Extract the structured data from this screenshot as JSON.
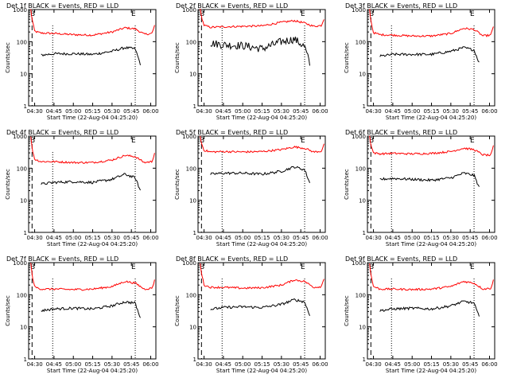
{
  "axis": {
    "ylabel": "Counts/sec",
    "xlabel": "Start Time (22-Aug-04 04:25:20)",
    "xticks": [
      "04:30",
      "04:45",
      "05:00",
      "05:15",
      "05:30",
      "05:45",
      "06:00"
    ],
    "yticks": [
      "1",
      "10",
      "100",
      "1000"
    ]
  },
  "colors": {
    "events": "#000000",
    "lld": "#ff0000",
    "axis": "#000000"
  },
  "chart_data": [
    {
      "type": "line",
      "title": "Det 1f BLACK = Events, RED = LLD",
      "xlim": [
        "04:25:20",
        "06:04:00"
      ],
      "ylim": [
        1,
        1000
      ],
      "yscale": "log",
      "xticks": [
        "04:30",
        "04:45",
        "05:00",
        "05:15",
        "05:30",
        "05:45",
        "06:00"
      ],
      "markers": [
        "B",
        "E"
      ],
      "series": [
        {
          "role": "LLD",
          "color": "#ff0000",
          "x": [
            "04:27",
            "04:28",
            "04:30",
            "04:35",
            "04:45",
            "05:00",
            "05:15",
            "05:30",
            "05:40",
            "05:48",
            "05:55",
            "06:01",
            "06:03"
          ],
          "y": [
            1000,
            500,
            210,
            185,
            180,
            165,
            160,
            200,
            270,
            250,
            170,
            180,
            320
          ]
        },
        {
          "role": "Events",
          "color": "#000000",
          "x": [
            "04:35",
            "04:45",
            "05:00",
            "05:15",
            "05:30",
            "05:40",
            "05:48",
            "05:52"
          ],
          "y": [
            38,
            42,
            42,
            40,
            50,
            65,
            60,
            20
          ]
        }
      ]
    },
    {
      "type": "line",
      "title": "Det 2f BLACK = Events, RED = LLD",
      "xlim": [
        "04:25:20",
        "06:04:00"
      ],
      "ylim": [
        1,
        1000
      ],
      "yscale": "log",
      "xticks": [
        "04:30",
        "04:45",
        "05:00",
        "05:15",
        "05:30",
        "05:45",
        "06:00"
      ],
      "markers": [
        "B",
        "E"
      ],
      "series": [
        {
          "role": "LLD",
          "color": "#ff0000",
          "x": [
            "04:27",
            "04:28",
            "04:30",
            "04:35",
            "04:45",
            "05:00",
            "05:15",
            "05:30",
            "05:40",
            "05:48",
            "05:55",
            "06:01",
            "06:03"
          ],
          "y": [
            1000,
            600,
            320,
            280,
            290,
            300,
            310,
            400,
            450,
            380,
            300,
            320,
            520
          ]
        },
        {
          "role": "Events",
          "color": "#000000",
          "x": [
            "04:35",
            "04:45",
            "05:00",
            "05:15",
            "05:30",
            "05:40",
            "05:48",
            "05:52"
          ],
          "y": [
            90,
            80,
            75,
            60,
            100,
            120,
            70,
            20
          ]
        }
      ]
    },
    {
      "type": "line",
      "title": "Det 3f BLACK = Events, RED = LLD",
      "xlim": [
        "04:25:20",
        "06:04:00"
      ],
      "ylim": [
        1,
        1000
      ],
      "yscale": "log",
      "xticks": [
        "04:30",
        "04:45",
        "05:00",
        "05:15",
        "05:30",
        "05:45",
        "06:00"
      ],
      "markers": [
        "B",
        "E"
      ],
      "series": [
        {
          "role": "LLD",
          "color": "#ff0000",
          "x": [
            "04:27",
            "04:28",
            "04:30",
            "04:35",
            "04:45",
            "05:00",
            "05:15",
            "05:30",
            "05:40",
            "05:48",
            "05:55",
            "06:01",
            "06:03"
          ],
          "y": [
            1000,
            450,
            190,
            165,
            160,
            150,
            150,
            180,
            260,
            240,
            150,
            160,
            300
          ]
        },
        {
          "role": "Events",
          "color": "#000000",
          "x": [
            "04:35",
            "04:45",
            "05:00",
            "05:15",
            "05:30",
            "05:40",
            "05:48",
            "05:52"
          ],
          "y": [
            35,
            40,
            40,
            40,
            50,
            65,
            55,
            22
          ]
        }
      ]
    },
    {
      "type": "line",
      "title": "Det 4f BLACK = Events, RED = LLD",
      "xlim": [
        "04:25:20",
        "06:04:00"
      ],
      "ylim": [
        1,
        1000
      ],
      "yscale": "log",
      "xticks": [
        "04:30",
        "04:45",
        "05:00",
        "05:15",
        "05:30",
        "05:45",
        "06:00"
      ],
      "markers": [
        "B",
        "E"
      ],
      "series": [
        {
          "role": "LLD",
          "color": "#ff0000",
          "x": [
            "04:27",
            "04:28",
            "04:30",
            "04:35",
            "04:45",
            "05:00",
            "05:15",
            "05:30",
            "05:40",
            "05:48",
            "05:55",
            "06:01",
            "06:03"
          ],
          "y": [
            1000,
            420,
            190,
            160,
            160,
            150,
            150,
            180,
            250,
            230,
            150,
            160,
            300
          ]
        },
        {
          "role": "Events",
          "color": "#000000",
          "x": [
            "04:35",
            "04:45",
            "05:00",
            "05:15",
            "05:30",
            "05:40",
            "05:48",
            "05:52"
          ],
          "y": [
            32,
            36,
            38,
            36,
            45,
            65,
            50,
            20
          ]
        }
      ]
    },
    {
      "type": "line",
      "title": "Det 5f BLACK = Events, RED = LLD",
      "xlim": [
        "04:25:20",
        "06:04:00"
      ],
      "ylim": [
        1,
        1000
      ],
      "yscale": "log",
      "xticks": [
        "04:30",
        "04:45",
        "05:00",
        "05:15",
        "05:30",
        "05:45",
        "06:00"
      ],
      "markers": [
        "B",
        "E"
      ],
      "series": [
        {
          "role": "LLD",
          "color": "#ff0000",
          "x": [
            "04:27",
            "04:28",
            "04:30",
            "04:35",
            "04:45",
            "05:00",
            "05:15",
            "05:30",
            "05:40",
            "05:48",
            "05:55",
            "06:01",
            "06:03"
          ],
          "y": [
            1000,
            600,
            360,
            320,
            330,
            320,
            330,
            380,
            460,
            420,
            320,
            340,
            540
          ]
        },
        {
          "role": "Events",
          "color": "#000000",
          "x": [
            "04:35",
            "04:45",
            "05:00",
            "05:15",
            "05:30",
            "05:40",
            "05:48",
            "05:52"
          ],
          "y": [
            65,
            70,
            70,
            65,
            80,
            110,
            90,
            35
          ]
        }
      ]
    },
    {
      "type": "line",
      "title": "Det 6f BLACK = Events, RED = LLD",
      "xlim": [
        "04:25:20",
        "06:04:00"
      ],
      "ylim": [
        1,
        1000
      ],
      "yscale": "log",
      "xticks": [
        "04:30",
        "04:45",
        "05:00",
        "05:15",
        "05:30",
        "05:45",
        "06:00"
      ],
      "markers": [
        "B",
        "E"
      ],
      "series": [
        {
          "role": "LLD",
          "color": "#ff0000",
          "x": [
            "04:27",
            "04:28",
            "04:30",
            "04:35",
            "04:45",
            "05:00",
            "05:15",
            "05:30",
            "05:40",
            "05:48",
            "05:55",
            "06:01",
            "06:03"
          ],
          "y": [
            1000,
            550,
            300,
            280,
            290,
            280,
            290,
            330,
            420,
            380,
            260,
            250,
            480
          ]
        },
        {
          "role": "Events",
          "color": "#000000",
          "x": [
            "04:35",
            "04:45",
            "05:00",
            "05:15",
            "05:30",
            "05:40",
            "05:48",
            "05:52"
          ],
          "y": [
            45,
            48,
            45,
            42,
            50,
            70,
            60,
            25
          ]
        }
      ]
    },
    {
      "type": "line",
      "title": "Det 7f BLACK = Events, RED = LLD",
      "xlim": [
        "04:25:20",
        "06:04:00"
      ],
      "ylim": [
        1,
        1000
      ],
      "yscale": "log",
      "xticks": [
        "04:30",
        "04:45",
        "05:00",
        "05:15",
        "05:30",
        "05:45",
        "06:00"
      ],
      "markers": [
        "B",
        "E"
      ],
      "series": [
        {
          "role": "LLD",
          "color": "#ff0000",
          "x": [
            "04:27",
            "04:28",
            "04:30",
            "04:35",
            "04:45",
            "05:00",
            "05:15",
            "05:30",
            "05:40",
            "05:48",
            "05:55",
            "06:01",
            "06:03"
          ],
          "y": [
            1000,
            420,
            175,
            150,
            150,
            145,
            150,
            180,
            260,
            230,
            150,
            160,
            280
          ]
        },
        {
          "role": "Events",
          "color": "#000000",
          "x": [
            "04:35",
            "04:45",
            "05:00",
            "05:15",
            "05:30",
            "05:40",
            "05:48",
            "05:52"
          ],
          "y": [
            32,
            36,
            38,
            36,
            45,
            60,
            55,
            18
          ]
        }
      ]
    },
    {
      "type": "line",
      "title": "Det 8f BLACK = Events, RED = LLD",
      "xlim": [
        "04:25:20",
        "06:04:00"
      ],
      "ylim": [
        1,
        1000
      ],
      "yscale": "log",
      "xticks": [
        "04:30",
        "04:45",
        "05:00",
        "05:15",
        "05:30",
        "05:45",
        "06:00"
      ],
      "markers": [
        "B",
        "E"
      ],
      "series": [
        {
          "role": "LLD",
          "color": "#ff0000",
          "x": [
            "04:27",
            "04:28",
            "04:30",
            "04:35",
            "04:45",
            "05:00",
            "05:15",
            "05:30",
            "05:40",
            "05:48",
            "05:55",
            "06:01",
            "06:03"
          ],
          "y": [
            1000,
            480,
            200,
            170,
            170,
            160,
            165,
            200,
            290,
            260,
            170,
            180,
            330
          ]
        },
        {
          "role": "Events",
          "color": "#000000",
          "x": [
            "04:35",
            "04:45",
            "05:00",
            "05:15",
            "05:30",
            "05:40",
            "05:48",
            "05:52"
          ],
          "y": [
            35,
            40,
            42,
            40,
            50,
            70,
            60,
            22
          ]
        }
      ]
    },
    {
      "type": "line",
      "title": "Det 9f BLACK = Events, RED = LLD",
      "xlim": [
        "04:25:20",
        "06:04:00"
      ],
      "ylim": [
        1,
        1000
      ],
      "yscale": "log",
      "xticks": [
        "04:30",
        "04:45",
        "05:00",
        "05:15",
        "05:30",
        "05:45",
        "06:00"
      ],
      "markers": [
        "B",
        "E"
      ],
      "series": [
        {
          "role": "LLD",
          "color": "#ff0000",
          "x": [
            "04:27",
            "04:28",
            "04:30",
            "04:35",
            "04:45",
            "05:00",
            "05:15",
            "05:30",
            "05:40",
            "05:48",
            "05:55",
            "06:01",
            "06:03"
          ],
          "y": [
            1000,
            420,
            180,
            150,
            150,
            145,
            150,
            180,
            260,
            230,
            150,
            160,
            280
          ]
        },
        {
          "role": "Events",
          "color": "#000000",
          "x": [
            "04:35",
            "04:45",
            "05:00",
            "05:15",
            "05:30",
            "05:40",
            "05:48",
            "05:52"
          ],
          "y": [
            32,
            36,
            38,
            36,
            45,
            62,
            55,
            20
          ]
        }
      ]
    }
  ]
}
